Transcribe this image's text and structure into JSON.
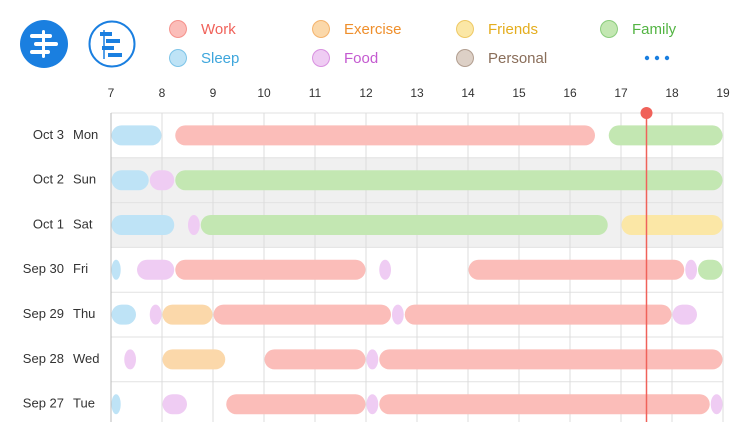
{
  "legend": [
    {
      "name": "Work",
      "color": "#f0625a",
      "fill": "#fbbdb9"
    },
    {
      "name": "Exercise",
      "color": "#ef8f2c",
      "fill": "#fbd8aa"
    },
    {
      "name": "Friends",
      "color": "#e4ad1e",
      "fill": "#fbe7a6"
    },
    {
      "name": "Family",
      "color": "#53b443",
      "fill": "#c3e7b2"
    },
    {
      "name": "Sleep",
      "color": "#3ea6dc",
      "fill": "#bee3f6"
    },
    {
      "name": "Food",
      "color": "#c45ad0",
      "fill": "#efccf3"
    },
    {
      "name": "Personal",
      "color": "#8a6e5a",
      "fill": "#ddd0c6"
    }
  ],
  "hours": [
    7,
    8,
    9,
    10,
    11,
    12,
    13,
    14,
    15,
    16,
    17,
    18,
    19
  ],
  "now": 17.5,
  "days": [
    {
      "date": "Oct 3",
      "weekday": "Mon",
      "shaded": false,
      "segments": [
        {
          "category": "Sleep",
          "start": 7,
          "end": 8
        },
        {
          "category": "Work",
          "start": 8.25,
          "end": 16.5
        },
        {
          "category": "Family",
          "start": 16.75,
          "end": 19
        }
      ]
    },
    {
      "date": "Oct 2",
      "weekday": "Sun",
      "shaded": true,
      "segments": [
        {
          "category": "Sleep",
          "start": 7,
          "end": 7.75
        },
        {
          "category": "Food",
          "start": 7.75,
          "end": 8.25
        },
        {
          "category": "Family",
          "start": 8.25,
          "end": 19
        }
      ]
    },
    {
      "date": "Oct 1",
      "weekday": "Sat",
      "shaded": true,
      "segments": [
        {
          "category": "Sleep",
          "start": 7,
          "end": 8.25
        },
        {
          "category": "Food",
          "start": 8.5,
          "end": 8.75
        },
        {
          "category": "Family",
          "start": 8.75,
          "end": 16.75
        },
        {
          "category": "Friends",
          "start": 17,
          "end": 19
        }
      ]
    },
    {
      "date": "Sep 30",
      "weekday": "Fri",
      "shaded": false,
      "segments": [
        {
          "category": "Sleep",
          "start": 7,
          "end": 7.2
        },
        {
          "category": "Food",
          "start": 7.5,
          "end": 8.25
        },
        {
          "category": "Work",
          "start": 8.25,
          "end": 12
        },
        {
          "category": "Food",
          "start": 12.25,
          "end": 12.5
        },
        {
          "category": "Work",
          "start": 14,
          "end": 18.25
        },
        {
          "category": "Food",
          "start": 18.25,
          "end": 18.5
        },
        {
          "category": "Family",
          "start": 18.5,
          "end": 19
        }
      ]
    },
    {
      "date": "Sep 29",
      "weekday": "Thu",
      "shaded": false,
      "segments": [
        {
          "category": "Sleep",
          "start": 7,
          "end": 7.5
        },
        {
          "category": "Food",
          "start": 7.75,
          "end": 8
        },
        {
          "category": "Exercise",
          "start": 8,
          "end": 9
        },
        {
          "category": "Work",
          "start": 9,
          "end": 12.5
        },
        {
          "category": "Food",
          "start": 12.5,
          "end": 12.75
        },
        {
          "category": "Work",
          "start": 12.75,
          "end": 18
        },
        {
          "category": "Food",
          "start": 18,
          "end": 18.5
        }
      ]
    },
    {
      "date": "Sep 28",
      "weekday": "Wed",
      "shaded": false,
      "segments": [
        {
          "category": "Food",
          "start": 7.25,
          "end": 7.5
        },
        {
          "category": "Exercise",
          "start": 8,
          "end": 9.25
        },
        {
          "category": "Work",
          "start": 10,
          "end": 12
        },
        {
          "category": "Food",
          "start": 12,
          "end": 12.25
        },
        {
          "category": "Work",
          "start": 12.25,
          "end": 19
        }
      ]
    },
    {
      "date": "Sep 27",
      "weekday": "Tue",
      "shaded": false,
      "segments": [
        {
          "category": "Sleep",
          "start": 7,
          "end": 7.2
        },
        {
          "category": "Food",
          "start": 8,
          "end": 8.5
        },
        {
          "category": "Work",
          "start": 9.25,
          "end": 12
        },
        {
          "category": "Food",
          "start": 12,
          "end": 12.25
        },
        {
          "category": "Work",
          "start": 12.25,
          "end": 18.75
        },
        {
          "category": "Food",
          "start": 18.75,
          "end": 19
        }
      ]
    }
  ]
}
